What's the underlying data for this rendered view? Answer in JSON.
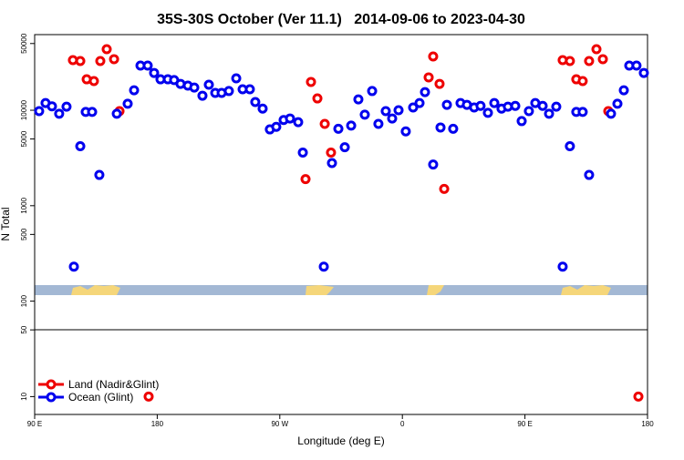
{
  "chart_data": {
    "type": "scatter",
    "title": "35S-30S October (Ver 11.1)   2014-09-06 to 2023-04-30",
    "x_label": "Longitude (deg E)",
    "y_label": "N Total",
    "log_y": true,
    "legend": "bottom-left",
    "xlim": [
      90,
      540
    ],
    "ylim": [
      6.5,
      62000
    ],
    "xticks": [
      {
        "value": 90,
        "label": "90 E"
      },
      {
        "value": 180,
        "label": "180"
      },
      {
        "value": 270,
        "label": "90 W"
      },
      {
        "value": 360,
        "label": "0"
      },
      {
        "value": 450,
        "label": "90 E"
      },
      {
        "value": 540,
        "label": "180"
      }
    ],
    "yticks": [
      10,
      50,
      100,
      500,
      1000,
      5000,
      10000,
      50000
    ],
    "series": [
      {
        "name": "Land (Nadir&Glint)",
        "color": "#ee0000",
        "x": [
          118.1,
          123.5,
          128.2,
          133.5,
          138.2,
          142.9,
          148.3,
          152.3,
          173.7,
          288.9,
          292.9,
          297.6,
          303.0,
          307.6,
          379.3,
          382.6,
          387.3,
          390.7,
          477.7,
          483.0,
          487.7,
          492.4,
          497.1,
          502.5,
          507.2,
          511.2,
          533.3
        ],
        "values": [
          33500,
          32800,
          21100,
          20200,
          32800,
          43600,
          34300,
          9800,
          10,
          1900,
          19800,
          13300,
          7200,
          3600,
          22100,
          36600,
          18900,
          1500,
          33500,
          32800,
          21100,
          20200,
          32800,
          43600,
          34300,
          9800,
          10
        ]
      },
      {
        "name": "Ocean (Glint)",
        "color": "#0000ee",
        "x": [
          93.3,
          98.0,
          102.7,
          108.0,
          113.4,
          118.8,
          123.5,
          127.5,
          132.2,
          137.5,
          150.3,
          158.3,
          163.0,
          167.7,
          173.0,
          177.7,
          182.4,
          187.8,
          192.4,
          197.1,
          202.5,
          207.2,
          213.2,
          217.9,
          222.6,
          227.3,
          232.6,
          238.0,
          242.7,
          248.0,
          252.0,
          257.4,
          262.7,
          267.4,
          272.8,
          277.5,
          283.5,
          286.9,
          302.3,
          308.3,
          313.0,
          317.7,
          322.4,
          327.7,
          332.4,
          337.8,
          342.4,
          347.8,
          352.5,
          357.2,
          362.5,
          367.9,
          372.6,
          376.6,
          382.6,
          388.0,
          392.7,
          397.3,
          402.7,
          407.4,
          412.7,
          417.4,
          422.8,
          427.5,
          432.8,
          437.5,
          442.9,
          447.6,
          452.9,
          457.6,
          463.0,
          467.7,
          473.0,
          477.7,
          483.0,
          487.7,
          492.4,
          497.1,
          513.2,
          517.9,
          522.6,
          526.6,
          531.9,
          537.3
        ],
        "values": [
          9800,
          11900,
          11000,
          9200,
          10900,
          230,
          4200,
          9600,
          9600,
          2100,
          9200,
          11700,
          16200,
          29400,
          29400,
          24600,
          21100,
          21100,
          20700,
          18900,
          18100,
          17300,
          14200,
          18500,
          15200,
          15200,
          15900,
          21600,
          16600,
          16600,
          12200,
          10400,
          6300,
          6700,
          7900,
          8200,
          7500,
          3600,
          230,
          2800,
          6400,
          4100,
          6900,
          13000,
          9000,
          15900,
          7200,
          9800,
          8200,
          10000,
          6000,
          10700,
          11900,
          15500,
          2700,
          6600,
          11400,
          6400,
          11900,
          11400,
          10700,
          11100,
          9400,
          11900,
          10400,
          10900,
          11100,
          7700,
          9800,
          11900,
          11100,
          9200,
          10900,
          230,
          4200,
          9600,
          9600,
          2100,
          9200,
          11700,
          16200,
          29400,
          29400,
          24600
        ]
      }
    ]
  }
}
